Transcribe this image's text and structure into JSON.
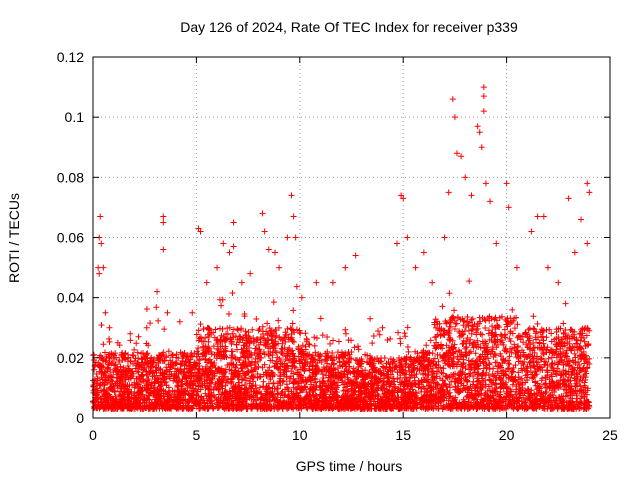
{
  "chart_data": {
    "type": "scatter",
    "title": "Day 126 of 2024, Rate Of TEC Index for receiver p339",
    "xlabel": "GPS time / hours",
    "ylabel": "ROTI / TECUs",
    "xlim": [
      0,
      25
    ],
    "ylim": [
      0,
      0.12
    ],
    "x_ticks": [
      "0",
      "5",
      "10",
      "15",
      "20",
      "25"
    ],
    "y_ticks": [
      "0",
      "0.02",
      "0.04",
      "0.06",
      "0.08",
      "0.1",
      "0.12"
    ],
    "grid": true,
    "legend": "none",
    "marker": "+",
    "color": "#ff0000",
    "points": [
      [
        0.3,
        0.06
      ],
      [
        0.35,
        0.067
      ],
      [
        0.4,
        0.058
      ],
      [
        0.25,
        0.05
      ],
      [
        0.3,
        0.048
      ],
      [
        0.5,
        0.05
      ],
      [
        0.6,
        0.035
      ],
      [
        0.8,
        0.03
      ],
      [
        1.2,
        0.025
      ],
      [
        1.8,
        0.028
      ],
      [
        2.2,
        0.027
      ],
      [
        2.6,
        0.03
      ],
      [
        3.1,
        0.042
      ],
      [
        3.4,
        0.067
      ],
      [
        3.4,
        0.065
      ],
      [
        3.4,
        0.056
      ],
      [
        3.6,
        0.035
      ],
      [
        4.2,
        0.032
      ],
      [
        4.8,
        0.035
      ],
      [
        5.1,
        0.063
      ],
      [
        5.2,
        0.062
      ],
      [
        5.5,
        0.045
      ],
      [
        6.0,
        0.05
      ],
      [
        6.3,
        0.058
      ],
      [
        6.6,
        0.055
      ],
      [
        6.8,
        0.057
      ],
      [
        6.8,
        0.065
      ],
      [
        7.2,
        0.045
      ],
      [
        7.6,
        0.048
      ],
      [
        8.2,
        0.068
      ],
      [
        8.3,
        0.062
      ],
      [
        8.5,
        0.056
      ],
      [
        8.8,
        0.055
      ],
      [
        9.0,
        0.05
      ],
      [
        9.4,
        0.06
      ],
      [
        9.6,
        0.074
      ],
      [
        9.7,
        0.067
      ],
      [
        9.8,
        0.06
      ],
      [
        10.1,
        0.04
      ],
      [
        10.8,
        0.045
      ],
      [
        11.6,
        0.045
      ],
      [
        12.2,
        0.05
      ],
      [
        12.7,
        0.054
      ],
      [
        13.4,
        0.033
      ],
      [
        14.0,
        0.03
      ],
      [
        14.7,
        0.058
      ],
      [
        14.9,
        0.074
      ],
      [
        15.0,
        0.073
      ],
      [
        15.2,
        0.06
      ],
      [
        15.6,
        0.05
      ],
      [
        16.0,
        0.055
      ],
      [
        16.4,
        0.045
      ],
      [
        17.0,
        0.06
      ],
      [
        17.2,
        0.075
      ],
      [
        17.4,
        0.106
      ],
      [
        17.5,
        0.1
      ],
      [
        17.6,
        0.088
      ],
      [
        17.8,
        0.087
      ],
      [
        18.0,
        0.08
      ],
      [
        18.3,
        0.074
      ],
      [
        18.6,
        0.097
      ],
      [
        18.7,
        0.095
      ],
      [
        18.8,
        0.09
      ],
      [
        18.9,
        0.11
      ],
      [
        18.9,
        0.107
      ],
      [
        18.9,
        0.102
      ],
      [
        19.0,
        0.078
      ],
      [
        19.2,
        0.072
      ],
      [
        19.5,
        0.058
      ],
      [
        20.0,
        0.078
      ],
      [
        20.1,
        0.07
      ],
      [
        20.5,
        0.05
      ],
      [
        21.2,
        0.062
      ],
      [
        21.5,
        0.067
      ],
      [
        21.8,
        0.067
      ],
      [
        22.0,
        0.05
      ],
      [
        22.5,
        0.045
      ],
      [
        23.0,
        0.073
      ],
      [
        23.3,
        0.055
      ],
      [
        23.6,
        0.066
      ],
      [
        23.9,
        0.078
      ],
      [
        24.0,
        0.075
      ],
      [
        23.9,
        0.058
      ]
    ]
  }
}
